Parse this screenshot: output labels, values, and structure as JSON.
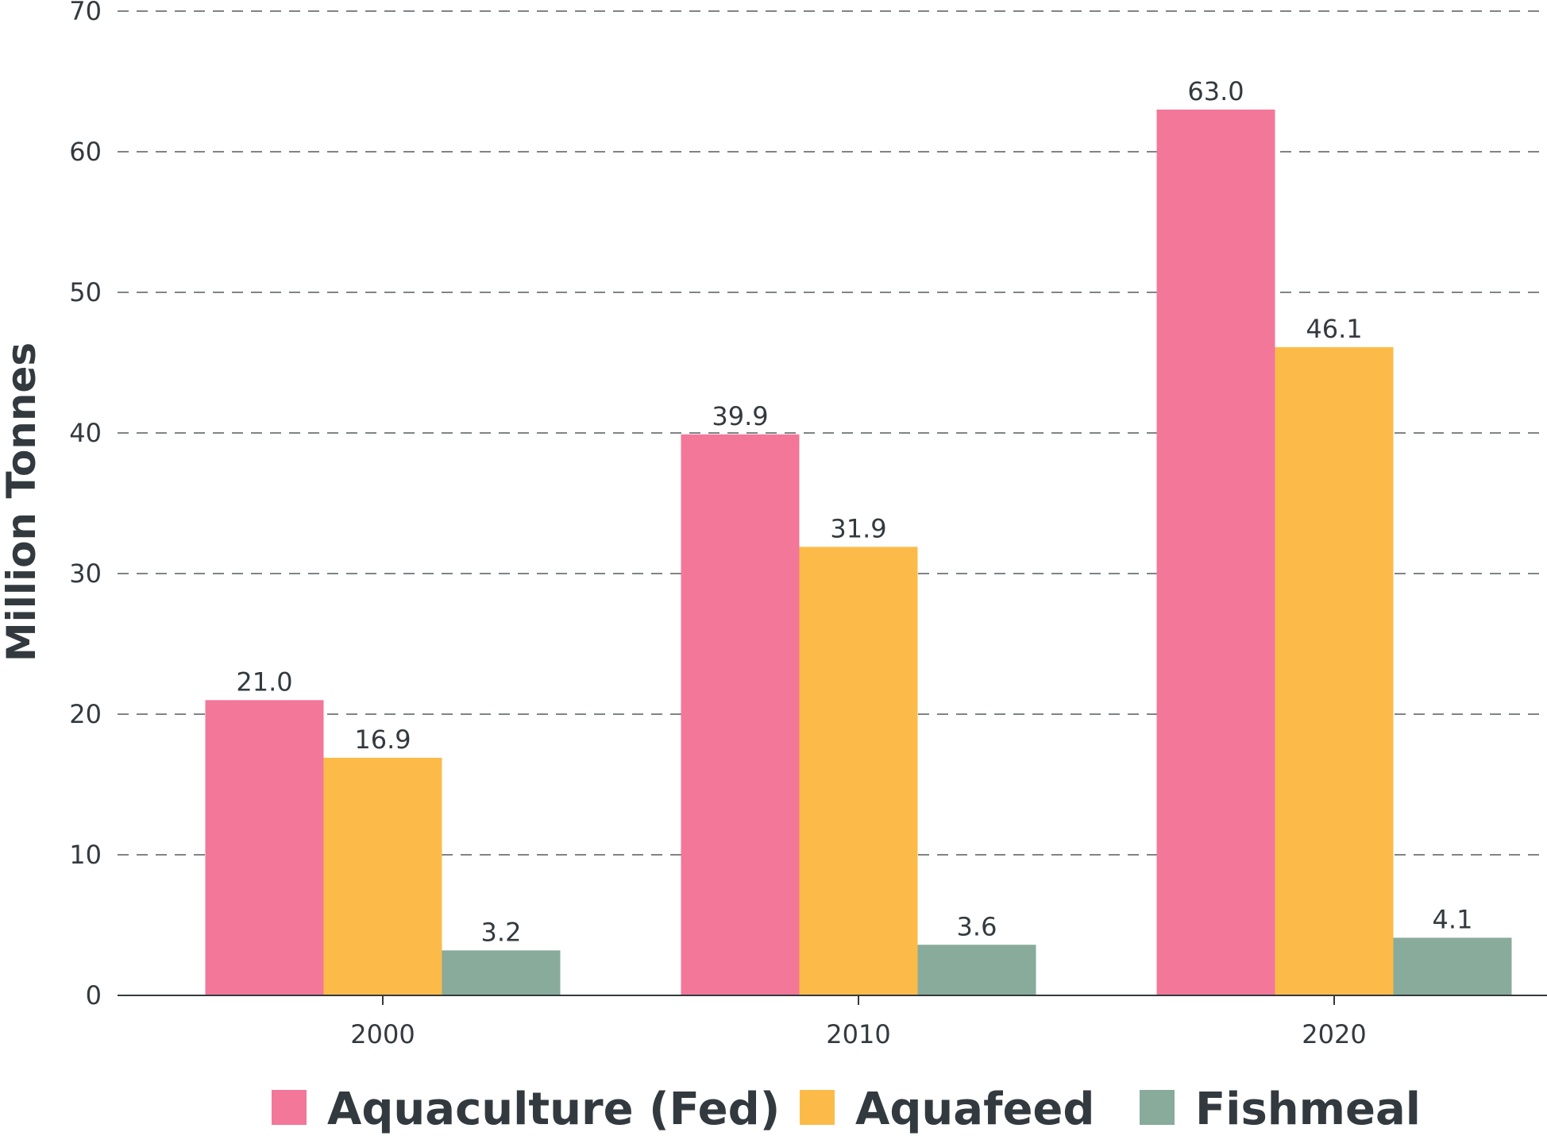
{
  "chart_data": {
    "type": "bar",
    "title": "",
    "xlabel": "",
    "ylabel": "Million Tonnes",
    "ylim": [
      0,
      70
    ],
    "yticks": [
      0,
      10,
      20,
      30,
      40,
      50,
      60,
      70
    ],
    "categories": [
      "2000",
      "2010",
      "2020"
    ],
    "series": [
      {
        "name": "Aquaculture (Fed)",
        "color": "#f27799",
        "values": [
          21.0,
          39.9,
          63.0
        ],
        "labels": [
          "21.0",
          "39.9",
          "63.0"
        ]
      },
      {
        "name": "Aquafeed",
        "color": "#fcbb49",
        "values": [
          16.9,
          31.9,
          46.1
        ],
        "labels": [
          "16.9",
          "31.9",
          "46.1"
        ]
      },
      {
        "name": "Fishmeal",
        "color": "#88ab9b",
        "values": [
          3.2,
          3.6,
          4.1
        ],
        "labels": [
          "3.2",
          "3.6",
          "4.1"
        ]
      }
    ],
    "grid": true,
    "grid_style": "dashed",
    "legend_position": "bottom"
  }
}
